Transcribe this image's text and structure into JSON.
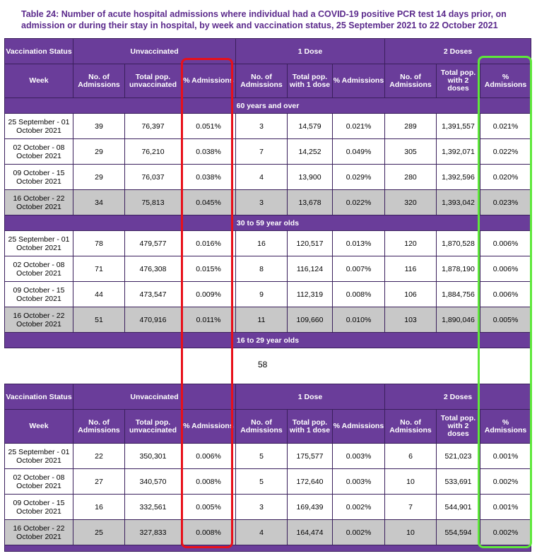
{
  "title": "Table 24: Number of acute hospital admissions where individual had a COVID-19 positive PCR test 14 days prior, on admission or during their stay in hospital, by week and vaccination status, 25 September 2021 to 22 October 2021",
  "headers": {
    "vaccination_status": "Vaccination Status",
    "groups": [
      "Unvaccinated",
      "1 Dose",
      "2 Doses"
    ],
    "week": "Week",
    "columns": [
      "No. of Admissions",
      "Total pop. unvaccinated",
      "% Admissions",
      "No. of Admissions",
      "Total pop. with 1 dose",
      "% Admissions",
      "No. of Admissions",
      "Total pop. with 2 doses",
      "% Admissions"
    ]
  },
  "sections": [
    {
      "label": "60 years and over",
      "rows": [
        [
          "25 September - 01 October 2021",
          "39",
          "76,397",
          "0.051%",
          "3",
          "14,579",
          "0.021%",
          "289",
          "1,391,557",
          "0.021%"
        ],
        [
          "02 October - 08 October 2021",
          "29",
          "76,210",
          "0.038%",
          "7",
          "14,252",
          "0.049%",
          "305",
          "1,392,071",
          "0.022%"
        ],
        [
          "09 October - 15 October 2021",
          "29",
          "76,037",
          "0.038%",
          "4",
          "13,900",
          "0.029%",
          "280",
          "1,392,596",
          "0.020%"
        ],
        [
          "16 October - 22 October 2021",
          "34",
          "75,813",
          "0.045%",
          "3",
          "13,678",
          "0.022%",
          "320",
          "1,393,042",
          "0.023%"
        ]
      ]
    },
    {
      "label": "30 to 59 year olds",
      "rows": [
        [
          "25 September - 01 October 2021",
          "78",
          "479,577",
          "0.016%",
          "16",
          "120,517",
          "0.013%",
          "120",
          "1,870,528",
          "0.006%"
        ],
        [
          "02 October - 08 October 2021",
          "71",
          "476,308",
          "0.015%",
          "8",
          "116,124",
          "0.007%",
          "116",
          "1,878,190",
          "0.006%"
        ],
        [
          "09 October - 15 October 2021",
          "44",
          "473,547",
          "0.009%",
          "9",
          "112,319",
          "0.008%",
          "106",
          "1,884,756",
          "0.006%"
        ],
        [
          "16 October - 22 October 2021",
          "51",
          "470,916",
          "0.011%",
          "11",
          "109,660",
          "0.010%",
          "103",
          "1,890,046",
          "0.005%"
        ]
      ]
    },
    {
      "label": "16 to 29 year olds",
      "rows": [
        [
          "25 September - 01 October 2021",
          "22",
          "350,301",
          "0.006%",
          "5",
          "175,577",
          "0.003%",
          "6",
          "521,023",
          "0.001%"
        ],
        [
          "02 October - 08 October 2021",
          "27",
          "340,570",
          "0.008%",
          "5",
          "172,640",
          "0.003%",
          "10",
          "533,691",
          "0.002%"
        ],
        [
          "09 October - 15 October 2021",
          "16",
          "332,561",
          "0.005%",
          "3",
          "169,439",
          "0.002%",
          "7",
          "544,901",
          "0.001%"
        ],
        [
          "16 October - 22 October 2021",
          "25",
          "327,833",
          "0.008%",
          "4",
          "164,474",
          "0.002%",
          "10",
          "554,594",
          "0.002%"
        ]
      ]
    }
  ],
  "page_number": "58",
  "colors": {
    "header_purple": "#6a3d9a",
    "title_purple": "#5b2a8c",
    "shaded_row": "#c8c8c8",
    "red_highlight": "#e8101a",
    "green_highlight": "#5ee83a"
  }
}
